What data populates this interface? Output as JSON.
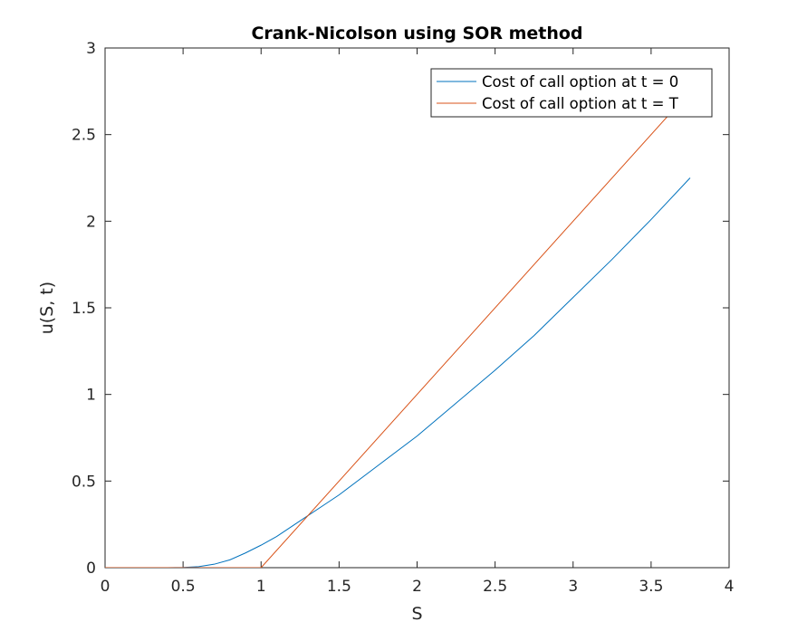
{
  "chart_data": {
    "type": "line",
    "title": "Crank-Nicolson using SOR method",
    "xlabel": "S",
    "ylabel": "u(S, t)",
    "xlim": [
      0,
      4
    ],
    "ylim": [
      0,
      3
    ],
    "xticks": [
      "0",
      "0.5",
      "1",
      "1.5",
      "2",
      "2.5",
      "3",
      "3.5",
      "4"
    ],
    "yticks": [
      "0",
      "0.5",
      "1",
      "1.5",
      "2",
      "2.5",
      "3"
    ],
    "grid": false,
    "legend_position": "top-right",
    "series": [
      {
        "name": "Cost of call option at t = 0",
        "color": "#0072BD",
        "x": [
          0,
          0.4,
          0.5,
          0.6,
          0.7,
          0.8,
          0.9,
          1.0,
          1.1,
          1.2,
          1.3,
          1.4,
          1.5,
          1.75,
          2.0,
          2.25,
          2.5,
          2.75,
          3.0,
          3.25,
          3.5,
          3.75
        ],
        "y": [
          0,
          0.0,
          0.001,
          0.006,
          0.02,
          0.045,
          0.085,
          0.13,
          0.18,
          0.24,
          0.3,
          0.36,
          0.42,
          0.59,
          0.76,
          0.95,
          1.14,
          1.34,
          1.56,
          1.78,
          2.01,
          2.25
        ]
      },
      {
        "name": "Cost of call option at t = T",
        "color": "#D95319",
        "x": [
          0,
          1.0,
          3.75
        ],
        "y": [
          0,
          0,
          2.75
        ]
      }
    ]
  }
}
